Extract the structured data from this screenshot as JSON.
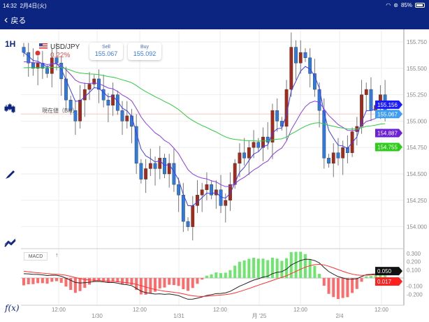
{
  "status_bar": {
    "time": "14:32",
    "date": "2月4日(火)",
    "battery": "85%"
  },
  "nav": {
    "back_label": "戻る"
  },
  "toolbar": {
    "timeframe": "1H",
    "fx_label": "f(x)"
  },
  "symbol": {
    "pair": "USD/JPY",
    "change": "0.22%"
  },
  "quotes": {
    "sell_label": "Sell",
    "sell_value": "155.067",
    "buy_label": "Buy",
    "buy_value": "155.092"
  },
  "current_price_label": "現在値（Bid）",
  "macd": {
    "label": "MACD",
    "arrow": "↑"
  },
  "colors": {
    "header": "#0c2580",
    "up": "#a52a1a",
    "down": "#2e7be0",
    "ma_fast": "#3b3bff",
    "ma_mid": "#8a3ee8",
    "ma_slow": "#2ecc40"
  },
  "chart_data": {
    "type": "candlestick",
    "price_ticks": [
      "155.750",
      "155.500",
      "155.250",
      "155.000",
      "154.750",
      "154.500",
      "154.250",
      "154.000"
    ],
    "price_tick_values": [
      155.75,
      155.5,
      155.25,
      155.0,
      154.75,
      154.5,
      154.25,
      154.0
    ],
    "macd_ticks": [
      "0.300",
      "0.200",
      "0.100",
      "-0.100",
      "-0.200"
    ],
    "macd_tick_values": [
      0.3,
      0.2,
      0.1,
      -0.1,
      -0.2
    ],
    "time_labels": [
      "12:00",
      "1/30",
      "12:00",
      "1/31",
      "12:00",
      "月 '25",
      "12:00",
      "2/4",
      "12:00"
    ],
    "closes": [
      155.65,
      155.55,
      155.5,
      155.55,
      155.5,
      155.45,
      155.6,
      155.55,
      155.4,
      155.2,
      155.1,
      155.0,
      155.2,
      155.3,
      155.35,
      155.4,
      155.3,
      155.2,
      155.15,
      155.25,
      155.1,
      155.0,
      155.05,
      154.95,
      154.6,
      154.45,
      154.55,
      154.6,
      154.55,
      154.65,
      154.5,
      154.6,
      154.4,
      154.3,
      154.05,
      154.0,
      154.2,
      154.3,
      154.35,
      154.4,
      154.3,
      154.35,
      154.2,
      154.25,
      154.4,
      154.6,
      154.7,
      154.65,
      154.75,
      154.8,
      154.75,
      154.85,
      154.8,
      155.1,
      155.0,
      154.95,
      155.3,
      155.7,
      155.55,
      155.65,
      155.6,
      155.45,
      155.3,
      155.1,
      154.65,
      154.6,
      154.7,
      154.65,
      154.75,
      154.7,
      154.9,
      154.95,
      155.25,
      155.3,
      155.1,
      155.15,
      155.25,
      155.067
    ],
    "badges": [
      {
        "value": "155.156",
        "color": "#1a1aff"
      },
      {
        "value": "155.067",
        "color": "#3d9cf5"
      },
      {
        "value": "154.887",
        "color": "#6a1fd8"
      },
      {
        "value": "154.755",
        "color": "#2ecc1a"
      }
    ],
    "macd_badges": [
      {
        "value": "0.050",
        "color": "#111"
      },
      {
        "value": "0.017",
        "color": "#ff2020"
      }
    ]
  }
}
